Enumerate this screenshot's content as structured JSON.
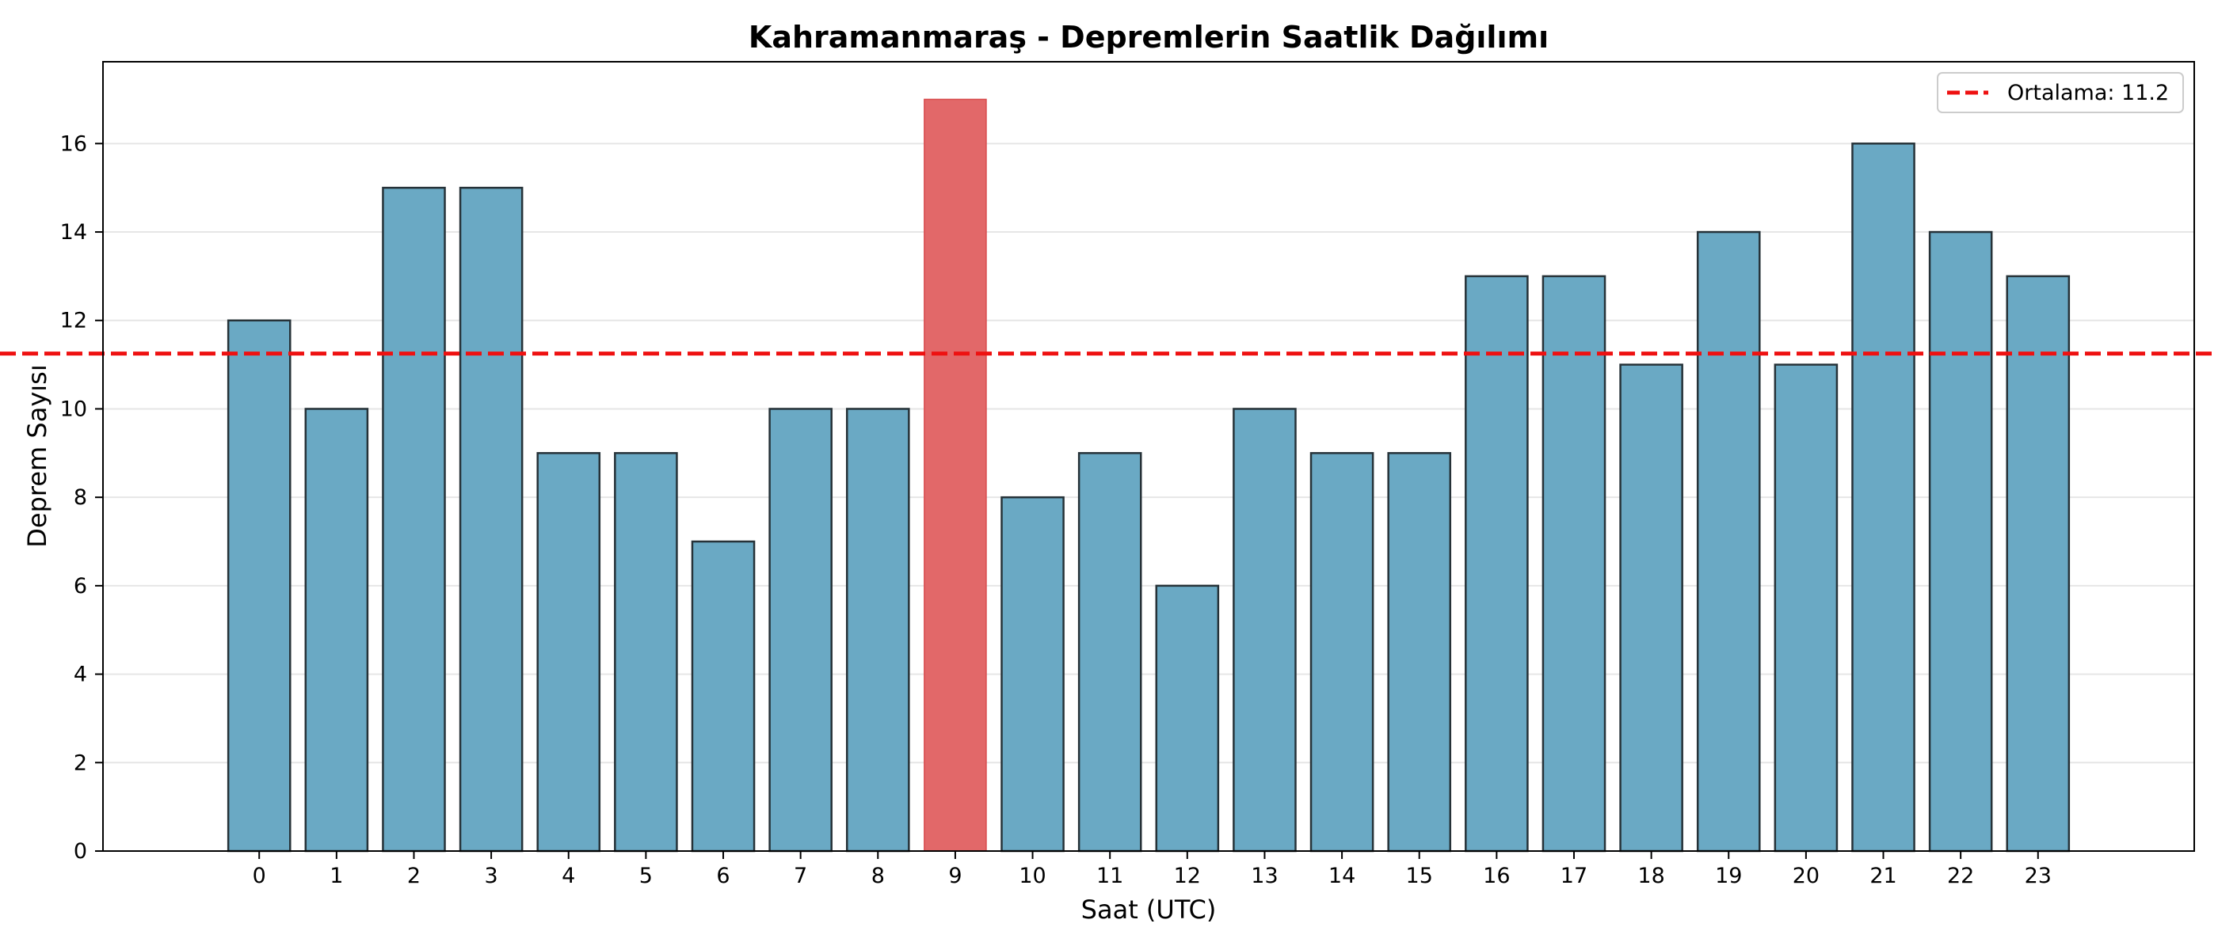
{
  "chart_data": {
    "type": "bar",
    "title": "Kahramanmaraş - Depremlerin Saatlik Dağılımı",
    "xlabel": "Saat (UTC)",
    "ylabel": "Deprem Sayısı",
    "categories": [
      "0",
      "1",
      "2",
      "3",
      "4",
      "5",
      "6",
      "7",
      "8",
      "9",
      "10",
      "11",
      "12",
      "13",
      "14",
      "15",
      "16",
      "17",
      "18",
      "19",
      "20",
      "21",
      "22",
      "23"
    ],
    "values": [
      12,
      10,
      15,
      15,
      9,
      9,
      7,
      10,
      10,
      17,
      8,
      9,
      6,
      10,
      9,
      9,
      13,
      13,
      11,
      14,
      11,
      16,
      14,
      13
    ],
    "highlight_category": "9",
    "ylim": [
      0,
      17.85
    ],
    "yticks": [
      0,
      2,
      4,
      6,
      8,
      10,
      12,
      14,
      16
    ],
    "grid": "horizontal",
    "mean_line": {
      "value": 11.25,
      "label": "Ortalama: 11.2"
    },
    "legend": {
      "placement": "top-right",
      "entries": [
        "Ortalama: 11.2"
      ]
    },
    "colors": {
      "bar": "#6aa9c4",
      "highlight_bar": "#e26869",
      "bar_edge": "#263238",
      "mean_line": "#ee1111",
      "grid": "#e6e6e6"
    }
  }
}
